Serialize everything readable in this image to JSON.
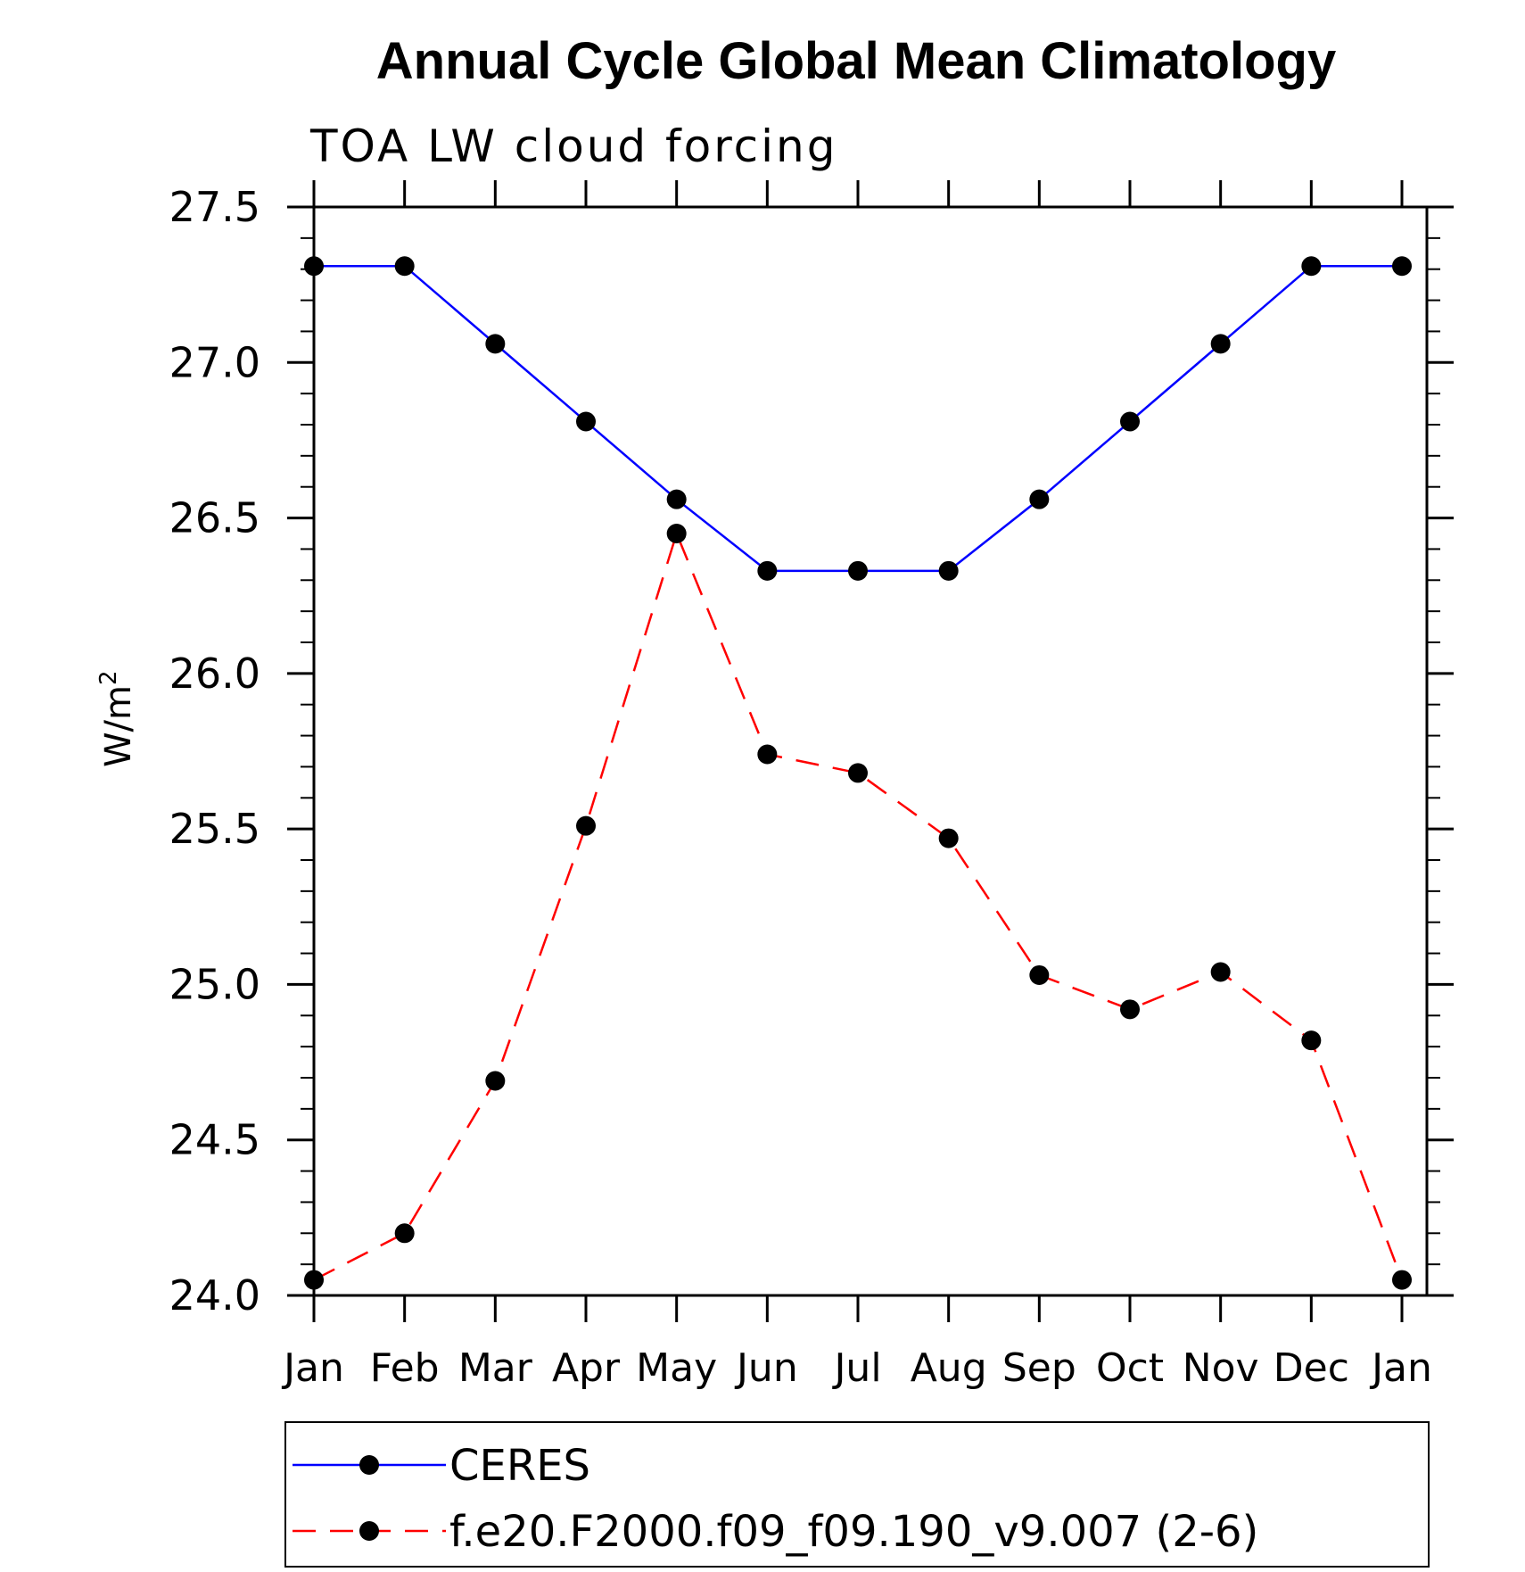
{
  "chart_data": {
    "type": "line",
    "title": "Annual Cycle Global Mean Climatology",
    "subtitle": "TOA LW cloud forcing",
    "ylabel": "W/m",
    "ylabel_superscript": "2",
    "xlabel": "",
    "ylim": [
      24.0,
      27.5
    ],
    "yticks": [
      "24.0",
      "24.5",
      "25.0",
      "25.5",
      "26.0",
      "26.5",
      "27.0",
      "27.5"
    ],
    "categories": [
      "Jan",
      "Feb",
      "Mar",
      "Apr",
      "May",
      "Jun",
      "Jul",
      "Aug",
      "Sep",
      "Oct",
      "Nov",
      "Dec",
      "Jan"
    ],
    "series": [
      {
        "name": "CERES",
        "color": "#0000ff",
        "dash": "solid",
        "values": [
          27.31,
          27.31,
          27.06,
          26.81,
          26.56,
          26.33,
          26.33,
          26.33,
          26.56,
          26.81,
          27.06,
          27.31,
          27.31
        ]
      },
      {
        "name": "f.e20.F2000.f09_f09.190_v9.007 (2-6)",
        "color": "#ff0000",
        "dash": "dashed",
        "values": [
          24.05,
          24.2,
          24.69,
          25.51,
          26.45,
          25.74,
          25.68,
          25.47,
          25.03,
          24.92,
          25.04,
          24.82,
          24.05
        ]
      }
    ],
    "legend_position": "bottom"
  }
}
